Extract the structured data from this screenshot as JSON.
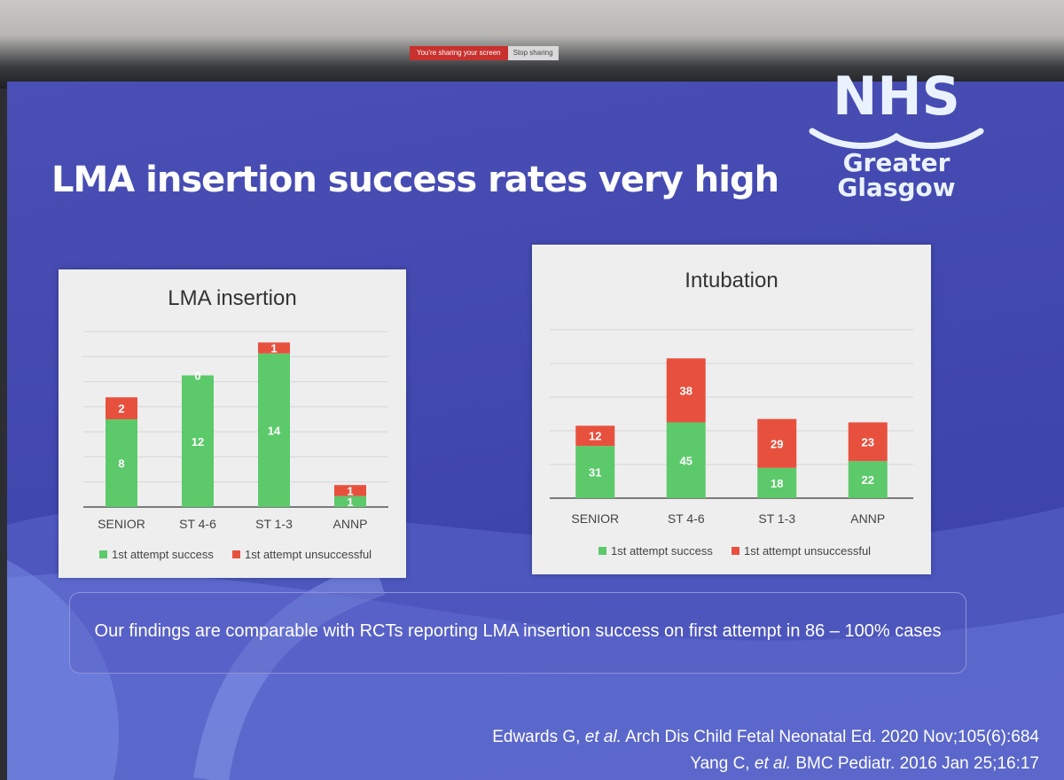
{
  "screen_share": {
    "message": "You're sharing your screen",
    "stop_label": "Stop sharing"
  },
  "slide": {
    "title": "LMA insertion success rates very high",
    "logo": {
      "wordmark": "NHS",
      "region_line1": "Greater",
      "region_line2": "Glasgow"
    },
    "note": "Our findings are comparable with RCTs reporting LMA insertion success on first attempt in 86 – 100% cases",
    "references": [
      {
        "authors": "Edwards G, ",
        "etal": "et al.",
        "rest": " Arch Dis Child Fetal Neonatal Ed. 2020 Nov;105(6):684"
      },
      {
        "authors": "Yang C, ",
        "etal": "et al.",
        "rest": " BMC Pediatr. 2016 Jan 25;16:17"
      }
    ]
  },
  "colors": {
    "success": "#5cc96a",
    "unsuccessful": "#e8503e",
    "panel": "#eeeeef",
    "slide_bg": "#4148ac"
  },
  "chart_data": [
    {
      "type": "bar",
      "stacked": true,
      "title": "LMA insertion",
      "categories": [
        "SENIOR",
        "ST 4-6",
        "ST 1-3",
        "ANNP"
      ],
      "series": [
        {
          "name": "1st attempt success",
          "values": [
            8,
            12,
            14,
            1
          ]
        },
        {
          "name": "1st attempt unsuccessful",
          "values": [
            2,
            0,
            1,
            1
          ]
        }
      ],
      "ylim": [
        0,
        16
      ],
      "grid": true,
      "legend": "bottom"
    },
    {
      "type": "bar",
      "stacked": true,
      "title": "Intubation",
      "categories": [
        "SENIOR",
        "ST 4-6",
        "ST 1-3",
        "ANNP"
      ],
      "series": [
        {
          "name": "1st attempt success",
          "values": [
            31,
            45,
            18,
            22
          ]
        },
        {
          "name": "1st attempt unsuccessful",
          "values": [
            12,
            38,
            29,
            23
          ]
        }
      ],
      "ylim": [
        0,
        100
      ],
      "grid": true,
      "legend": "bottom"
    }
  ]
}
